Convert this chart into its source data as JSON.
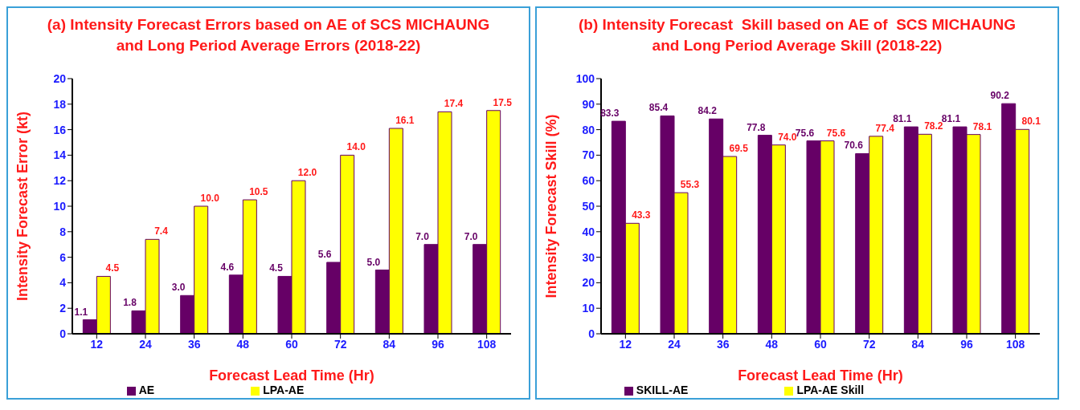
{
  "chart_data": [
    {
      "type": "bar",
      "title": "(a) Intensity Forecast Errors based on AE of SCS MICHAUNG and Long Period Average Errors (2018-22)",
      "xlabel": "Forecast Lead Time (Hr)",
      "ylabel": "Intensity Forecast Error  (kt)",
      "categories": [
        "12",
        "24",
        "36",
        "48",
        "60",
        "72",
        "84",
        "96",
        "108"
      ],
      "series": [
        {
          "name": "AE",
          "color": "#660066",
          "values": [
            1.1,
            1.8,
            3.0,
            4.6,
            4.5,
            5.6,
            5.0,
            7.0,
            7.0
          ],
          "value_labels": [
            "1.1",
            "1.8",
            "3.0",
            "4.6",
            "4.5",
            "5.6",
            "5.0",
            "7.0",
            "7.0"
          ]
        },
        {
          "name": "LPA-AE",
          "color": "#ffff00",
          "values": [
            4.5,
            7.4,
            10.0,
            10.5,
            12.0,
            14.0,
            16.1,
            17.4,
            17.5
          ],
          "value_labels": [
            "4.5",
            "7.4",
            "10.0",
            "10.5",
            "12.0",
            "14.0",
            "16.1",
            "17.4",
            "17.5"
          ]
        }
      ],
      "ylim": [
        0,
        20
      ],
      "yticks": [
        0,
        2,
        4,
        6,
        8,
        10,
        12,
        14,
        16,
        18,
        20
      ],
      "grid": false,
      "legend": "bottom"
    },
    {
      "type": "bar",
      "title": "(b) Intensity Forecast  Skill based on AE of  SCS MICHAUNG and Long Period Average Skill (2018-22)",
      "xlabel": "Forecast Lead Time (Hr)",
      "ylabel": "Intensity Forecast Skill  (%)",
      "categories": [
        "12",
        "24",
        "36",
        "48",
        "60",
        "72",
        "84",
        "96",
        "108"
      ],
      "series": [
        {
          "name": "SKILL-AE",
          "color": "#660066",
          "values": [
            83.3,
            85.4,
            84.2,
            77.8,
            75.6,
            70.6,
            81.1,
            81.1,
            90.2
          ],
          "value_labels": [
            "83.3",
            "85.4",
            "84.2",
            "77.8",
            "75.6",
            "70.6",
            "81.1",
            "81.1",
            "90.2"
          ]
        },
        {
          "name": "LPA-AE Skill",
          "color": "#ffff00",
          "values": [
            43.3,
            55.3,
            69.5,
            74.0,
            75.6,
            77.4,
            78.2,
            78.1,
            80.1
          ],
          "value_labels": [
            "43.3",
            "55.3",
            "69.5",
            "74.0",
            "75.6",
            "77.4",
            "78.2",
            "78.1",
            "80.1"
          ]
        }
      ],
      "ylim": [
        0,
        100
      ],
      "yticks": [
        0,
        10,
        20,
        30,
        40,
        50,
        60,
        70,
        80,
        90,
        100
      ],
      "grid": false,
      "legend": "bottom"
    }
  ]
}
